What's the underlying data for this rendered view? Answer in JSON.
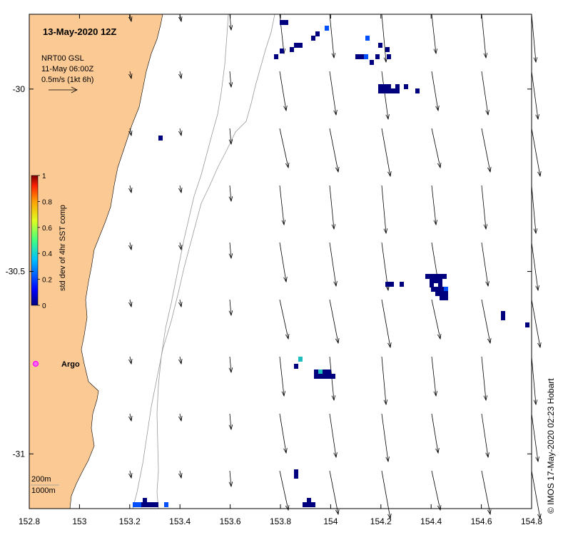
{
  "title": "13-May-2020 12Z",
  "current_info": {
    "line1": "NRT00 GSL",
    "line2": "11-May 06:00Z",
    "line3": "0.5m/s (1kt 6h)"
  },
  "colorbar": {
    "label": "std dev of 4hr SST comp",
    "ticks": [
      "0",
      "0.2",
      "0.4",
      "0.6",
      "0.8",
      "1"
    ]
  },
  "argo_label": "Argo",
  "depth_legend": {
    "line1": "200m",
    "line2": "1000m"
  },
  "credit": "© IMOS 17-May-2020 02:23 Hobart",
  "axes": {
    "x_ticks": [
      "152.8",
      "153",
      "153.2",
      "153.4",
      "153.6",
      "153.8",
      "154",
      "154.2",
      "154.4",
      "154.6",
      "154.8"
    ],
    "y_ticks": [
      "-30",
      "-30.5",
      "-31"
    ],
    "x_range": [
      152.8,
      154.8
    ],
    "y_range": [
      -31.15,
      -29.795
    ]
  },
  "colors": {
    "land": "#fbc994",
    "contour": "#999999",
    "argo": "#ff00ff",
    "sst_low": "#00007f",
    "sst_mid": "#0050ff",
    "sst_cyan": "#1fbfbf"
  }
}
